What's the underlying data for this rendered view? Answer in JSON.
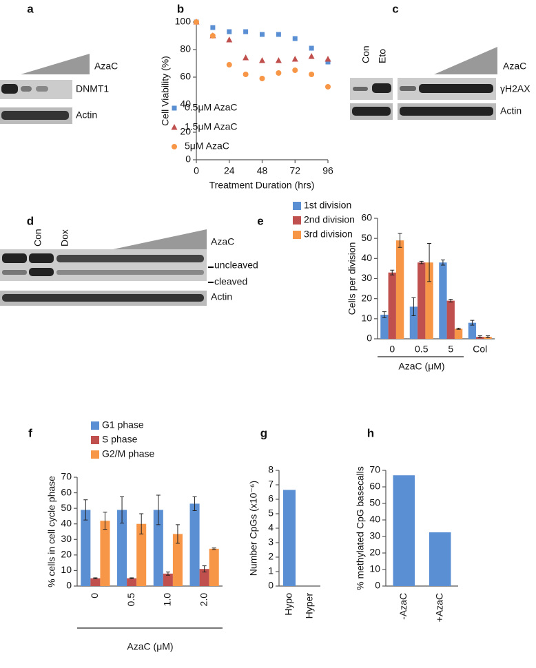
{
  "panel_labels": [
    "a",
    "b",
    "c",
    "d",
    "e",
    "f",
    "g",
    "h"
  ],
  "blots": [
    {
      "labels": [
        "AzaC",
        "DNMT1",
        "Actin"
      ]
    },
    {
      "labels": [
        "Con",
        "Eto",
        "AzaC",
        "γH2AX",
        "Actin"
      ]
    },
    {
      "labels": [
        "Con",
        "Dox",
        "AzaC",
        "uncleaved",
        "cleaved",
        "Actin"
      ]
    }
  ],
  "chart_data": [
    {
      "type": "scatter",
      "xlabel": "Treatment Duration (hrs)",
      "ylabel": "Cell Viability (%)",
      "xlim": [
        0,
        96
      ],
      "xticks": [
        0,
        24,
        48,
        72,
        96
      ],
      "ylim": [
        0,
        100
      ],
      "yticks": [
        0,
        20,
        40,
        60,
        80,
        100
      ],
      "x": [
        0,
        12,
        24,
        36,
        48,
        60,
        72,
        84,
        96
      ],
      "series": [
        {
          "name": "0.5μM AzaC",
          "color": "#5b8fd4",
          "marker": "square",
          "values": [
            100,
            96,
            93,
            93,
            91,
            91,
            88,
            81,
            71
          ]
        },
        {
          "name": "1.5μM AzaC",
          "color": "#c0504d",
          "marker": "triangle",
          "values": [
            100,
            90,
            87,
            74,
            72,
            72,
            73,
            75,
            73
          ]
        },
        {
          "name": "5μM AzaC",
          "color": "#f79646",
          "marker": "circle",
          "values": [
            100,
            90,
            69,
            62,
            59,
            63,
            65,
            62,
            53
          ]
        }
      ]
    },
    {
      "type": "bar",
      "xlabel": "AzaC (μM)",
      "ylabel": "Cells per division",
      "categories": [
        "0",
        "0.5",
        "5",
        "Col"
      ],
      "ylim": [
        0,
        60
      ],
      "yticks": [
        0,
        10,
        20,
        30,
        40,
        50,
        60
      ],
      "series": [
        {
          "name": "1st division",
          "color": "#5b8fd4",
          "values": [
            12,
            16,
            38,
            8
          ],
          "errors": [
            1.5,
            4.5,
            1.3,
            1.2
          ]
        },
        {
          "name": "2nd division",
          "color": "#c0504d",
          "values": [
            33,
            38,
            19,
            1
          ],
          "errors": [
            1.2,
            0.6,
            0.7,
            0.5
          ]
        },
        {
          "name": "3rd division",
          "color": "#f79646",
          "values": [
            49,
            38,
            5,
            1
          ],
          "errors": [
            3.5,
            9.5,
            0.3,
            0.5
          ]
        }
      ]
    },
    {
      "type": "bar",
      "xlabel": "AzaC (μM)",
      "ylabel": "% cells in cell cycle phase",
      "categories": [
        "0",
        "0.5",
        "1.0",
        "2.0"
      ],
      "ylim": [
        0,
        70
      ],
      "yticks": [
        0,
        10,
        20,
        30,
        40,
        50,
        60,
        70
      ],
      "series": [
        {
          "name": "G1 phase",
          "color": "#5b8fd4",
          "values": [
            49,
            49,
            49,
            53
          ],
          "errors": [
            6.5,
            8.5,
            9.5,
            4.5
          ]
        },
        {
          "name": "S phase",
          "color": "#c0504d",
          "values": [
            5,
            5,
            8,
            11
          ],
          "errors": [
            0.3,
            0.3,
            1,
            2
          ]
        },
        {
          "name": "G2/M phase",
          "color": "#f79646",
          "values": [
            42,
            40,
            33.5,
            24
          ],
          "errors": [
            5.5,
            6.5,
            6,
            0.5
          ]
        }
      ]
    },
    {
      "type": "bar",
      "ylabel": "Number CpGs (x10⁻⁶)",
      "categories": [
        "Hypo",
        "Hyper"
      ],
      "ylim": [
        0,
        8
      ],
      "yticks": [
        0,
        1,
        2,
        3,
        4,
        5,
        6,
        7,
        8
      ],
      "series": [
        {
          "color": "#5b8fd4",
          "values": [
            6.65,
            0
          ]
        }
      ]
    },
    {
      "type": "bar",
      "ylabel": "% methylated CpG basecalls",
      "categories": [
        "-AzaC",
        "+AzaC"
      ],
      "ylim": [
        0,
        70
      ],
      "yticks": [
        0,
        10,
        20,
        30,
        40,
        50,
        60,
        70
      ],
      "series": [
        {
          "color": "#5b8fd4",
          "values": [
            67,
            32.5
          ]
        }
      ]
    }
  ]
}
